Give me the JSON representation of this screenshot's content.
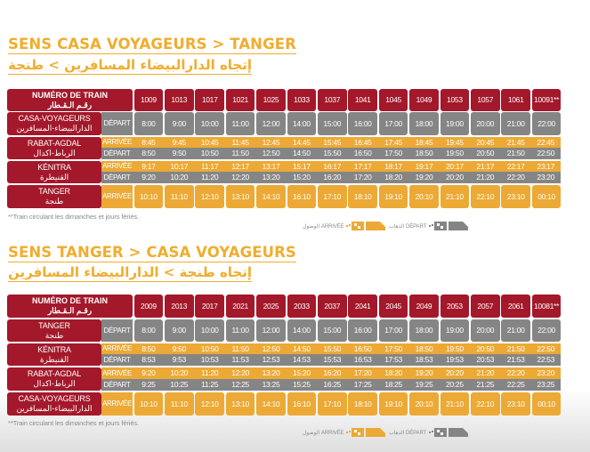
{
  "colors": {
    "title": "#f0ad2e",
    "header_red": "#a3182a",
    "departure_gray": "#858585",
    "arrival_orange": "#eca935",
    "note_gray": "#8a8a8a"
  },
  "labels": {
    "train_number_fr": "NUMÉRO DE TRAIN",
    "train_number_ar": "رقـم الـقـطار",
    "depart": "DÉPART",
    "arrivee": "ARRIVÉE",
    "note": "**Train circulant les dimanches et jours fériés.",
    "legend_arrival": "الوصول ARRIVÉE",
    "legend_departure": "الذهاب DÉPART"
  },
  "sections": [
    {
      "title_fr": "SENS CASA VOYAGEURS > TANGER",
      "title_ar": "إتجاه الدارالبيضاء المسافرين > طنجة",
      "trains": [
        "1009",
        "1013",
        "1017",
        "1021",
        "1025",
        "1033",
        "1037",
        "1041",
        "1045",
        "1049",
        "1053",
        "1057",
        "1061",
        "10091**"
      ],
      "stations": [
        {
          "name_fr": "CASA-VOYAGEURS",
          "name_ar": "الدارالبيضاء-المسافرين",
          "depart": [
            "8:00",
            "9:00",
            "10:00",
            "11:00",
            "12:00",
            "14:00",
            "15:00",
            "16:00",
            "17:00",
            "18:00",
            "19:00",
            "20:00",
            "21:00",
            "22:00"
          ]
        },
        {
          "name_fr": "RABAT-AGDAL",
          "name_ar": "الرباط-اكدال",
          "arrivee": [
            "8:45",
            "9:45",
            "10:45",
            "11:45",
            "12:45",
            "14:45",
            "15:45",
            "16:45",
            "17:45",
            "18:45",
            "19:45",
            "20:45",
            "21:45",
            "22:45"
          ],
          "depart": [
            "8:50",
            "9:50",
            "10:50",
            "11:50",
            "12:50",
            "14:50",
            "15:50",
            "16:50",
            "17:50",
            "18:50",
            "19:50",
            "20:50",
            "21:50",
            "22:50"
          ]
        },
        {
          "name_fr": "KÉNITRA",
          "name_ar": "القنيطرة",
          "arrivee": [
            "9:17",
            "10:17",
            "11:17",
            "12:17",
            "13:17",
            "15:17",
            "16:17",
            "17:17",
            "18:17",
            "19:17",
            "20:17",
            "21:17",
            "22:17",
            "23:17"
          ],
          "depart": [
            "9:20",
            "10:20",
            "11:20",
            "12:20",
            "13:20",
            "15:20",
            "16:20",
            "17:20",
            "18:20",
            "19:20",
            "20:20",
            "21:20",
            "22:20",
            "23:20"
          ]
        },
        {
          "name_fr": "TANGER",
          "name_ar": "طنجة",
          "arrivee": [
            "10:10",
            "11:10",
            "12:10",
            "13:10",
            "14:10",
            "16:10",
            "17:10",
            "18:10",
            "19:10",
            "20:10",
            "21:10",
            "22:10",
            "23:10",
            "00:10"
          ]
        }
      ]
    },
    {
      "title_fr": "SENS TANGER > CASA VOYAGEURS",
      "title_ar": "إتجاه طنجة > الدارالبيضاء المسافرين",
      "trains": [
        "2009",
        "2013",
        "2017",
        "2021",
        "2025",
        "2033",
        "2037",
        "2041",
        "2045",
        "2049",
        "2053",
        "2057",
        "2061",
        "10081**"
      ],
      "stations": [
        {
          "name_fr": "TANGER",
          "name_ar": "طنجة",
          "depart": [
            "8:00",
            "9:00",
            "10:00",
            "11:00",
            "12:00",
            "14:00",
            "15:00",
            "16:00",
            "17:00",
            "18:00",
            "19:00",
            "20:00",
            "21:00",
            "22:00"
          ]
        },
        {
          "name_fr": "KÉNITRA",
          "name_ar": "القنيطرة",
          "arrivee": [
            "8:50",
            "9:50",
            "10:50",
            "11:50",
            "12:50",
            "14:50",
            "15:50",
            "16:50",
            "17:50",
            "18:50",
            "19:50",
            "20:50",
            "21:50",
            "22:50"
          ],
          "depart": [
            "8:53",
            "9:53",
            "10:53",
            "11:53",
            "12:53",
            "14:53",
            "15:53",
            "16:53",
            "17:53",
            "18:53",
            "19:53",
            "20:53",
            "21:53",
            "22:53"
          ]
        },
        {
          "name_fr": "RABAT-AGDAL",
          "name_ar": "الرباط-اكدال",
          "arrivee": [
            "9:20",
            "10:20",
            "11:20",
            "12:20",
            "13:20",
            "15:20",
            "16:20",
            "17:20",
            "18:20",
            "19:20",
            "20:20",
            "21:20",
            "22:20",
            "23:20"
          ],
          "depart": [
            "9:25",
            "10:25",
            "11:25",
            "12:25",
            "13:25",
            "15:25",
            "16:25",
            "17:25",
            "18:25",
            "19:25",
            "20:25",
            "21:25",
            "22:25",
            "23:25"
          ]
        },
        {
          "name_fr": "CASA-VOYAGEURS",
          "name_ar": "الدارالبيضاء-المسافرين",
          "arrivee": [
            "10:10",
            "11:10",
            "12:10",
            "13:10",
            "14:10",
            "16:10",
            "17:10",
            "18:10",
            "19:10",
            "20:10",
            "21:10",
            "22:10",
            "23:10",
            "00:10"
          ]
        }
      ]
    }
  ]
}
